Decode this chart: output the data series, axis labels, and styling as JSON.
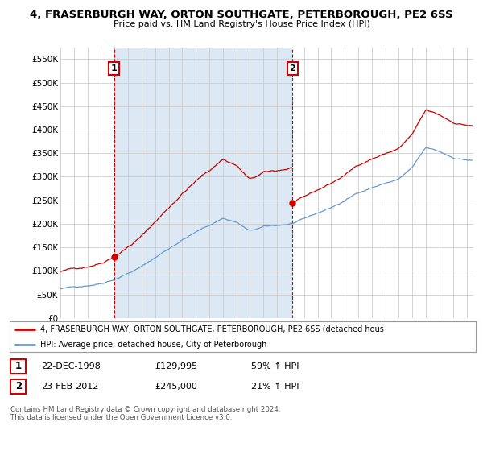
{
  "title1": "4, FRASERBURGH WAY, ORTON SOUTHGATE, PETERBOROUGH, PE2 6SS",
  "title2": "Price paid vs. HM Land Registry's House Price Index (HPI)",
  "ylim": [
    0,
    575000
  ],
  "yticks": [
    0,
    50000,
    100000,
    150000,
    200000,
    250000,
    300000,
    350000,
    400000,
    450000,
    500000,
    550000
  ],
  "ytick_labels": [
    "£0",
    "£50K",
    "£100K",
    "£150K",
    "£200K",
    "£250K",
    "£300K",
    "£350K",
    "£400K",
    "£450K",
    "£500K",
    "£550K"
  ],
  "xlim_start": 1995.0,
  "xlim_end": 2025.5,
  "xticks": [
    1995,
    1996,
    1997,
    1998,
    1999,
    2000,
    2001,
    2002,
    2003,
    2004,
    2005,
    2006,
    2007,
    2008,
    2009,
    2010,
    2011,
    2012,
    2013,
    2014,
    2015,
    2016,
    2017,
    2018,
    2019,
    2020,
    2021,
    2022,
    2023,
    2024,
    2025
  ],
  "red_color": "#cc0000",
  "blue_color": "#6699cc",
  "highlight_color": "#dce9f5",
  "sale1_x": 1998.97,
  "sale1_y": 129995,
  "sale2_x": 2012.14,
  "sale2_y": 245000,
  "legend_label_red": "4, FRASERBURGH WAY, ORTON SOUTHGATE, PETERBOROUGH, PE2 6SS (detached hous",
  "legend_label_blue": "HPI: Average price, detached house, City of Peterborough",
  "table_row1": [
    "1",
    "22-DEC-1998",
    "£129,995",
    "59% ↑ HPI"
  ],
  "table_row2": [
    "2",
    "23-FEB-2012",
    "£245,000",
    "21% ↑ HPI"
  ],
  "footer": "Contains HM Land Registry data © Crown copyright and database right 2024.\nThis data is licensed under the Open Government Licence v3.0.",
  "background_color": "#ffffff",
  "grid_color": "#cccccc"
}
